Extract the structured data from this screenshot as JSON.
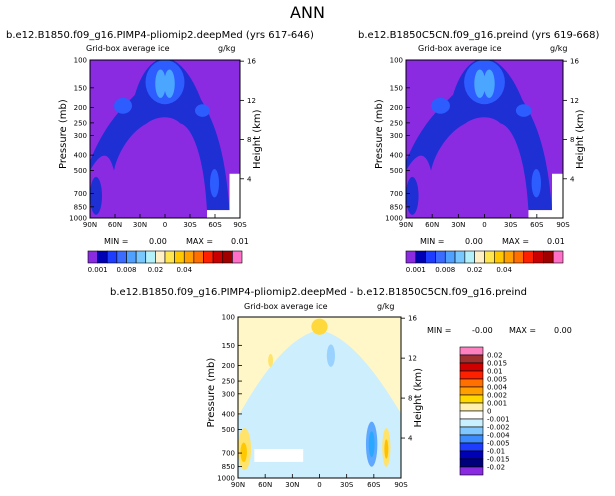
{
  "page_title": "ANN",
  "chart_data": [
    {
      "type": "heatmap",
      "title": "b.e12.B1850.f09_g16.PIMP4-pliomip2.deepMed (yrs 617-646)",
      "subtitle": "Grid-box average ice",
      "units": "g/kg",
      "xlabel": "",
      "ylabel": "Pressure (mb)",
      "y2label": "Height (km)",
      "x_ticks": [
        "90N",
        "60N",
        "30N",
        "0",
        "30S",
        "60S",
        "90S"
      ],
      "y_ticks": [
        "100",
        "150",
        "200",
        "250",
        "300",
        "400",
        "500",
        "700",
        "850",
        "1000"
      ],
      "y2_ticks": [
        "16",
        "12",
        "8",
        "4"
      ],
      "stats": {
        "min_label": "MIN =",
        "min": "0.00",
        "max_label": "MAX =",
        "max": "0.01"
      },
      "colorbar_labels": [
        "0.001",
        "0.008",
        "0.02",
        "0.04"
      ],
      "colorbar_colors": [
        "#8a2be2",
        "#0000b4",
        "#1e3cff",
        "#3c6cff",
        "#50a0ff",
        "#78c8ff",
        "#b4f0fa",
        "#fff0c8",
        "#ffe650",
        "#ffc800",
        "#ffa000",
        "#ff7000",
        "#ff2000",
        "#c80000",
        "#a00000",
        "#ff70c8"
      ]
    },
    {
      "type": "heatmap",
      "title": "b.e12.B1850C5CN.f09_g16.preind (yrs 619-668)",
      "subtitle": "Grid-box average ice",
      "units": "g/kg",
      "xlabel": "",
      "ylabel": "Pressure (mb)",
      "y2label": "Height (km)",
      "x_ticks": [
        "90N",
        "60N",
        "30N",
        "0",
        "30S",
        "60S",
        "90S"
      ],
      "y_ticks": [
        "100",
        "150",
        "200",
        "250",
        "300",
        "400",
        "500",
        "700",
        "850",
        "1000"
      ],
      "y2_ticks": [
        "16",
        "12",
        "8",
        "4"
      ],
      "stats": {
        "min_label": "MIN =",
        "min": "0.00",
        "max_label": "MAX =",
        "max": "0.01"
      },
      "colorbar_labels": [
        "0.001",
        "0.008",
        "0.02",
        "0.04"
      ],
      "colorbar_colors": [
        "#8a2be2",
        "#0000b4",
        "#1e3cff",
        "#3c6cff",
        "#50a0ff",
        "#78c8ff",
        "#b4f0fa",
        "#fff0c8",
        "#ffe650",
        "#ffc800",
        "#ffa000",
        "#ff7000",
        "#ff2000",
        "#c80000",
        "#a00000",
        "#ff70c8"
      ]
    },
    {
      "type": "heatmap",
      "title": "b.e12.B1850.f09_g16.PIMP4-pliomip2.deepMed - b.e12.B1850C5CN.f09_g16.preind",
      "subtitle": "Grid-box average ice",
      "units": "g/kg",
      "xlabel": "",
      "ylabel": "Pressure (mb)",
      "y2label": "Height (km)",
      "x_ticks": [
        "90N",
        "60N",
        "30N",
        "0",
        "30S",
        "60S",
        "90S"
      ],
      "y_ticks": [
        "100",
        "150",
        "200",
        "250",
        "300",
        "400",
        "500",
        "700",
        "850",
        "1000"
      ],
      "y2_ticks": [
        "16",
        "12",
        "8",
        "4"
      ],
      "stats": {
        "min_label": "MIN =",
        "min": "-0.00",
        "max_label": "MAX =",
        "max": "0.00"
      },
      "colorbar_labels": [
        "0.02",
        "0.015",
        "0.01",
        "0.005",
        "0.004",
        "0.002",
        "0.001",
        "0",
        "-0.001",
        "-0.002",
        "-0.004",
        "-0.005",
        "-0.01",
        "-0.015",
        "-0.02"
      ],
      "colorbar_colors": [
        "#ff80c0",
        "#a03030",
        "#d00000",
        "#ff2000",
        "#ff7000",
        "#ffa000",
        "#ffd800",
        "#fff0b0",
        "#ffffff",
        "#c8f0ff",
        "#80c8ff",
        "#3c8cff",
        "#1e3cff",
        "#0000b4",
        "#00007a",
        "#8a2be2"
      ]
    }
  ]
}
